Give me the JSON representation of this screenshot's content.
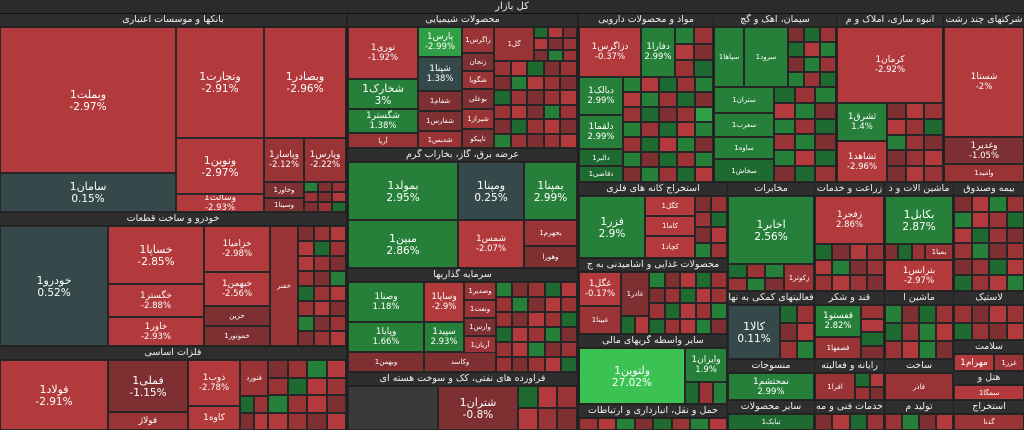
{
  "header": {
    "title": "کل بازار"
  },
  "sections": {
    "banks": "بانکها و موسسات اعتباری",
    "chemical": "محصولات شیمیایی",
    "pharma": "مواد و محصولات دارویی",
    "cement": "سیمان، آهک و گچ",
    "realestate": "انبوه سازی، املاک و م",
    "multi": "شرکتهای چند رشت",
    "auto": "خودرو و ساخت قطعات",
    "utilities": "عرضه برق، گاز، بخارآب گرم",
    "mining": "استخراج کانه های فلزی",
    "telecom": "مخابرات",
    "agri": "زراعت و خدمات",
    "machinery": "ماشین آلات و د",
    "insurance": "بیمه وصندوق",
    "food": "محصولات غذایی و آشامیدنی به ج",
    "investment": "سرمایه گذاریها",
    "finance_aux": "فعالیتهای کمکی به نها",
    "sugar": "قند و شکر",
    "machine_t": "ماشین آ",
    "ceramic": "کاشی",
    "basic_metals": "فلزات اساسی",
    "other_finance": "سایر واسطه گریهای مالی",
    "textile": "منسوجات",
    "computer": "رایانه و فعالیته",
    "oil": "فراورده های نفتی، کک و سوخت هسته ای",
    "transport": "حمل و نقل، انبارداری و ارتباطات",
    "engineering": "خدمات فنی و مه",
    "other_ind": "سایر محصولات",
    "electrical": "تولید م",
    "construction": "ساخت",
    "hotel": "هتل و",
    "extraction": "استخراج",
    "tires": "لاستیک",
    "cosmetics": "سلامت"
  },
  "tiles": {
    "vebmelat": {
      "name": "وبملت1",
      "pct": "-2.97%"
    },
    "vetejarat": {
      "name": "وتجارت1",
      "pct": "-2.91%"
    },
    "vebsader": {
      "name": "وبصادر1",
      "pct": "-2.96%"
    },
    "vanovin": {
      "name": "ونوین1",
      "pct": "-2.97%"
    },
    "vapasar": {
      "name": "وپاسار1",
      "pct": "-2.12%"
    },
    "vepars": {
      "name": "وپارس1",
      "pct": "-2.22%"
    },
    "saman": {
      "name": "سامان1",
      "pct": "0.15%"
    },
    "vesalat": {
      "name": "وسالت1",
      "pct": "-2.93%"
    },
    "vakhavar": {
      "name": "وخاور1",
      "pct": ""
    },
    "vesina": {
      "name": "وسینا1",
      "pct": ""
    },
    "vekar": {
      "name": "وکار",
      "pct": ""
    },
    "nouri": {
      "name": "نوری1",
      "pct": "-1.92%"
    },
    "pars": {
      "name": "پارس1",
      "pct": "-2.99%"
    },
    "shekharak": {
      "name": "شخارک1",
      "pct": "3%"
    },
    "shapna": {
      "name": "شپنا1",
      "pct": "1.38%"
    },
    "shegostar": {
      "name": "شگستر1",
      "pct": "1.38%"
    },
    "zagros": {
      "name": "زاگرس1",
      "pct": ""
    },
    "zanjan": {
      "name": "زنجان",
      "pct": ""
    },
    "shegoya": {
      "name": "شگویا",
      "pct": ""
    },
    "shefam": {
      "name": "شفام1",
      "pct": ""
    },
    "boali": {
      "name": "بوعلی",
      "pct": ""
    },
    "shafaras": {
      "name": "شفارس1",
      "pct": ""
    },
    "shiraz": {
      "name": "شیراز1",
      "pct": ""
    },
    "aria": {
      "name": "آریا",
      "pct": ""
    },
    "shedis": {
      "name": "شدیس1",
      "pct": ""
    },
    "tapiko": {
      "name": "تاپیکو",
      "pct": ""
    },
    "gol": {
      "name": "گل1",
      "pct": ""
    },
    "dazagros": {
      "name": "دزاگرس1",
      "pct": "-0.37%"
    },
    "dafara": {
      "name": "دفارا1",
      "pct": "2.99%"
    },
    "dabalk": {
      "name": "دبالک1",
      "pct": "2.99%"
    },
    "dalqma": {
      "name": "دلقما1",
      "pct": "2.99%"
    },
    "dalor": {
      "name": "دالبر1",
      "pct": ""
    },
    "daqazi": {
      "name": "دقاضی1",
      "pct": ""
    },
    "sipaha": {
      "name": "سپاها1",
      "pct": ""
    },
    "soroud": {
      "name": "سرود1",
      "pct": ""
    },
    "setran": {
      "name": "ستران1",
      "pct": ""
    },
    "safarb": {
      "name": "سغرب1",
      "pct": ""
    },
    "sava": {
      "name": "ساوه1",
      "pct": ""
    },
    "sakhash": {
      "name": "سخاش1",
      "pct": ""
    },
    "kerman": {
      "name": "کرمان1",
      "pct": "-2.92%"
    },
    "sheshti": {
      "name": "شستا1",
      "pct": "-2%"
    },
    "tesharq": {
      "name": "ثشرق1",
      "pct": "1.4%"
    },
    "tesha": {
      "name": "ثشاهد1",
      "pct": "-2.96%"
    },
    "vaghadir": {
      "name": "وغدیر1",
      "pct": "-1.05%"
    },
    "vamid": {
      "name": "وامید1",
      "pct": ""
    },
    "khodro": {
      "name": "خودرو1",
      "pct": "0.52%"
    },
    "khesapa": {
      "name": "خساپا1",
      "pct": "-2.85%"
    },
    "khezamia": {
      "name": "خزامیا1",
      "pct": "-2.98%"
    },
    "khebahman": {
      "name": "خبهمن1",
      "pct": "-2.56%"
    },
    "khegostar": {
      "name": "خگستر1",
      "pct": "-2.88%"
    },
    "khavar": {
      "name": "خاور1",
      "pct": "-2.93%"
    },
    "khemehr": {
      "name": "خمحرکه",
      "pct": ""
    },
    "khamotor": {
      "name": "خموتور1",
      "pct": ""
    },
    "khafar": {
      "name": "خفنر",
      "pct": ""
    },
    "khazin": {
      "name": "خزین",
      "pct": ""
    },
    "bemola": {
      "name": "بمولد1",
      "pct": "2.95%"
    },
    "vamapna": {
      "name": "ومپنا1",
      "pct": "0.25%"
    },
    "bemapna": {
      "name": "بمپنا1",
      "pct": "2.99%"
    },
    "mobin": {
      "name": "مبین1",
      "pct": "2.86%"
    },
    "shams": {
      "name": "شمس1",
      "pct": "-2.07%"
    },
    "behegm": {
      "name": "بجهرم1",
      "pct": ""
    },
    "vahora": {
      "name": "وهورا",
      "pct": ""
    },
    "kegol": {
      "name": "کگل1",
      "pct": ""
    },
    "fezar": {
      "name": "فزر1",
      "pct": "2.9%"
    },
    "kama": {
      "name": "کاما1",
      "pct": ""
    },
    "kechad": {
      "name": "کچاد1",
      "pct": ""
    },
    "akhaber": {
      "name": "اخابر1",
      "pct": "2.56%"
    },
    "rekoh": {
      "name": "زکوثر1",
      "pct": ""
    },
    "zagfar": {
      "name": "زنجان",
      "pct": ""
    },
    "zefarr": {
      "name": "زفجر1",
      "pct": "2.86%"
    },
    "bekahel": {
      "name": "بکابل1",
      "pct": "2.87%"
    },
    "bepaya": {
      "name": "بپیوند",
      "pct": ""
    },
    "betran": {
      "name": "بترانس1",
      "pct": "-2.97%"
    },
    "bema": {
      "name": "بمیا1",
      "pct": ""
    },
    "vesna": {
      "name": "وصنا1",
      "pct": "1.18%"
    },
    "vesapa": {
      "name": "وساپا1",
      "pct": "-2.9%"
    },
    "vasdir": {
      "name": "وصدیر1",
      "pct": ""
    },
    "vanfa": {
      "name": "ونفت1",
      "pct": ""
    },
    "vepars2": {
      "name": "وارس1",
      "pct": ""
    },
    "sepid": {
      "name": "سپید1",
      "pct": "2.93%"
    },
    "aryan": {
      "name": "آریان1",
      "pct": ""
    },
    "vepaya": {
      "name": "وپایا1",
      "pct": "1.66%"
    },
    "vebahman": {
      "name": "وبهمن1",
      "pct": ""
    },
    "vekhasd": {
      "name": "وکاسد",
      "pct": ""
    },
    "gheshaz": {
      "name": "غگل1",
      "pct": "-0.17%"
    },
    "ghader": {
      "name": "غادر1",
      "pct": ""
    },
    "ghebisa": {
      "name": "غبینا1",
      "pct": ""
    },
    "kala": {
      "name": "کالا1",
      "pct": "0.11%"
    },
    "ghefsto": {
      "name": "قفستو1",
      "pct": "2.82%"
    },
    "gheshem": {
      "name": "قشهد1",
      "pct": ""
    },
    "ghesfaha": {
      "name": "قصفها1",
      "pct": ""
    },
    "mahram": {
      "name": "مهرام1",
      "pct": "2.9%"
    },
    "ghezar": {
      "name": "غزر1",
      "pct": ""
    },
    "fouladi": {
      "name": "فولاد1",
      "pct": "-2.91%"
    },
    "femeli": {
      "name": "فملی1",
      "pct": "-1.15%"
    },
    "zob": {
      "name": "ذوب1",
      "pct": "-2.78%"
    },
    "kave": {
      "name": "کاوه1",
      "pct": ""
    },
    "fanvar": {
      "name": "فنورد",
      "pct": ""
    },
    "feolad": {
      "name": "فولاژ",
      "pct": ""
    },
    "velanavin": {
      "name": "ولتوین1",
      "pct": "27.02%"
    },
    "vairan": {
      "name": "وایران1",
      "pct": "1.9%"
    },
    "nemohtash": {
      "name": "نمحتشم1",
      "pct": "2.99%"
    },
    "nebak": {
      "name": "نبابک1",
      "pct": ""
    },
    "afra": {
      "name": "افرا1",
      "pct": ""
    },
    "sheteran": {
      "name": "شتران1",
      "pct": "-0.8%"
    },
    "semga": {
      "name": "سمگا1",
      "pct": ""
    },
    "gedaa": {
      "name": "گدنا",
      "pct": ""
    },
    "kalo": {
      "name": "فاذر",
      "pct": ""
    }
  }
}
